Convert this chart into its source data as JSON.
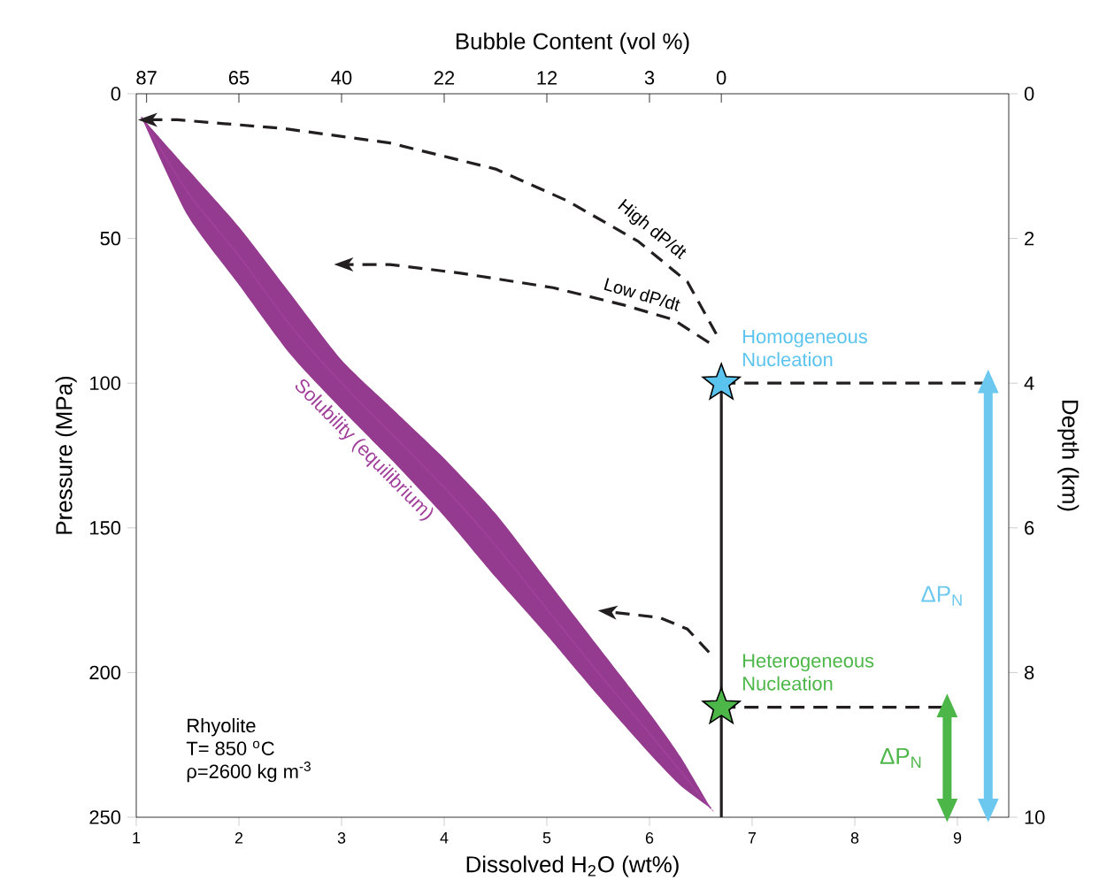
{
  "chart_data": {
    "type": "line",
    "xlabel": "Dissolved H$_{2}$O (wt%)",
    "ylabel": "Pressure (MPa)",
    "y2label": "Depth (km)",
    "x2label": "Bubble Content (vol %)",
    "xlim": [
      1,
      9.5
    ],
    "xticks": [
      1,
      2,
      3,
      4,
      5,
      6,
      7,
      8,
      9
    ],
    "ylim": [
      250,
      0
    ],
    "yticks": [
      0,
      50,
      100,
      150,
      200,
      250
    ],
    "y2lim": [
      10,
      0
    ],
    "y2ticks": [
      0,
      2,
      4,
      6,
      8,
      10
    ],
    "annotations": [
      "87",
      "65",
      "40",
      "22",
      "12",
      "3",
      "0",
      "Rhyolite",
      "T= 850 $^{o}$C",
      "ρ=2600 kg m$^{-3}$"
    ],
    "series": [
      {
        "type": "line",
        "name": "Solubility (equilibrium)",
        "color": "#a1409b",
        "x": [
          1.05,
          1.5,
          2,
          2.5,
          3,
          3.5,
          4,
          4.5,
          5,
          5.5,
          6,
          6.3,
          6.6
        ],
        "values": [
          8,
          34,
          56,
          80,
          100,
          118,
          136,
          156,
          178,
          200,
          221,
          234,
          247
        ],
        "lower": [
          8,
          26,
          46,
          69,
          92,
          109,
          126,
          145,
          168,
          191,
          214,
          229,
          247
        ],
        "upper": [
          8,
          42,
          66,
          90,
          109,
          127,
          146,
          167,
          187,
          208,
          228,
          239,
          247
        ]
      },
      {
        "type": "line",
        "name": "High dP/dt",
        "line_style": "dashed",
        "color": "#231f20",
        "x": [
          6.65,
          6.37,
          5.89,
          5.2,
          4.5,
          3.47,
          2.43,
          1.4,
          1.12
        ],
        "values": [
          83,
          65,
          51,
          37,
          26,
          17,
          12,
          9,
          9
        ]
      },
      {
        "type": "line",
        "name": "Low dP/dt",
        "line_style": "dashed",
        "color": "#231f20",
        "x": [
          6.58,
          6.23,
          5.75,
          5.06,
          4.16,
          3.47,
          3.03
        ],
        "values": [
          86,
          78,
          73,
          67,
          62,
          59,
          59
        ]
      },
      {
        "type": "line",
        "line_style": "dashed",
        "color": "#231f20",
        "x": [
          6.58,
          6.37,
          6.1,
          5.6
        ],
        "values": [
          193,
          185,
          181,
          179
        ]
      },
      {
        "type": "line",
        "line_style": "solid",
        "color": "#231f20",
        "x": [
          6.7,
          6.7
        ],
        "values": [
          100,
          250
        ]
      },
      {
        "type": "line",
        "line_style": "dashed",
        "color": "#231f20",
        "x": [
          6.7,
          9.3
        ],
        "values": [
          100,
          100
        ]
      },
      {
        "type": "line",
        "line_style": "dashed",
        "color": "#231f20",
        "x": [
          6.7,
          8.9
        ],
        "values": [
          212,
          212
        ]
      },
      {
        "type": "line",
        "name": "ΔP$_{N}$",
        "marker": "triangle",
        "color": "#6dc8ef",
        "x": [
          9.3,
          9.3
        ],
        "values": [
          100,
          247
        ]
      },
      {
        "type": "line",
        "name": "ΔP$_{N}$",
        "marker": "triangle",
        "color": "#4cb748",
        "x": [
          8.9,
          8.9
        ],
        "values": [
          212,
          247
        ]
      },
      {
        "type": "scatter",
        "marker": "star",
        "name": "Homogeneous Nucleation",
        "color": "#5bc4ee",
        "x": [
          6.7
        ],
        "values": [
          100
        ]
      },
      {
        "type": "scatter",
        "marker": "star",
        "name": "Heterogeneous Nucleation",
        "color": "#4cb748",
        "x": [
          6.7
        ],
        "values": [
          212
        ]
      }
    ]
  }
}
